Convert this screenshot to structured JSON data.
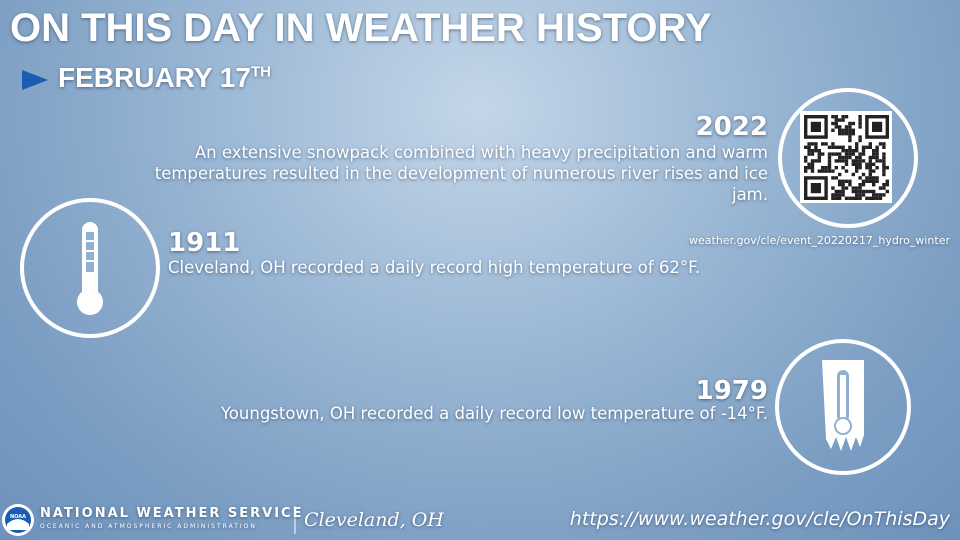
{
  "header": {
    "title": "ON THIS DAY IN WEATHER HISTORY",
    "date": "FEBRUARY 17",
    "date_suffix": "TH"
  },
  "events": [
    {
      "year": "2022",
      "text": "An extensive snowpack combined with heavy precipitation and warm temperatures resulted in the development of numerous river rises and ice jam.",
      "link": "weather.gov/cle/event_20220217_hydro_winter"
    },
    {
      "year": "1911",
      "text": "Cleveland, OH recorded a daily record high temperature of 62°F."
    },
    {
      "year": "1979",
      "text": "Youngstown, OH recorded a daily record low temperature of -14°F."
    }
  ],
  "footer": {
    "agency": "NATIONAL WEATHER SERVICE",
    "agency_sub": "OCEANIC AND ATMOSPHERIC ADMINISTRATION",
    "logo": "NOAA",
    "office": "Cleveland, OH",
    "url": "https://www.weather.gov/cle/OnThisDay"
  }
}
